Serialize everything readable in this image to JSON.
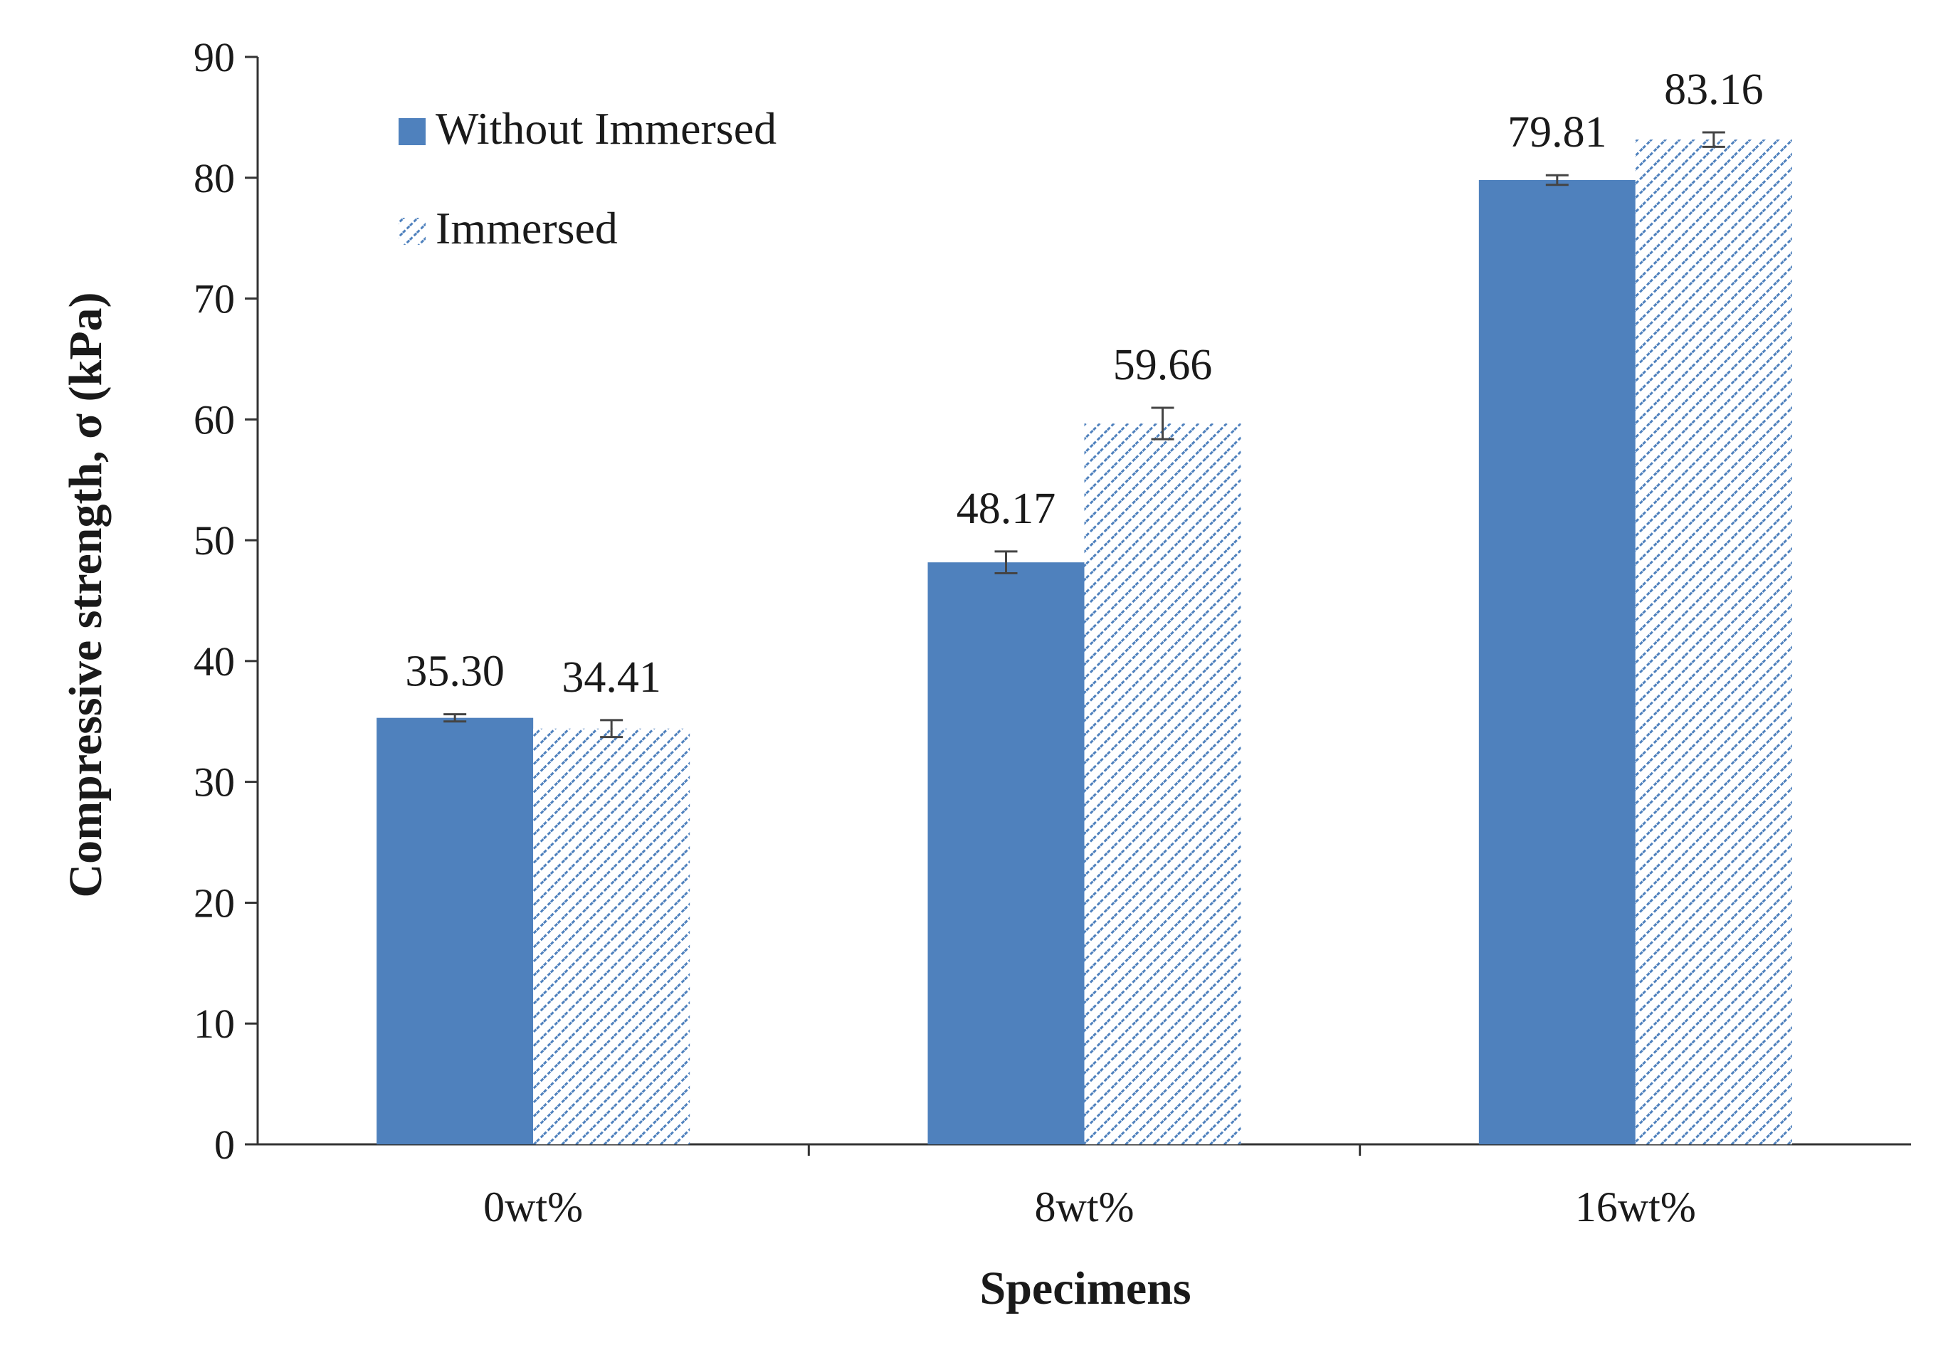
{
  "chart_data": {
    "type": "bar",
    "title": "",
    "xlabel": "Specimens",
    "ylabel": "Compressive strength, σ (kPa)",
    "categories": [
      "0wt%",
      "8wt%",
      "16wt%"
    ],
    "ylim": [
      0,
      90
    ],
    "yticks": [
      0,
      10,
      20,
      30,
      40,
      50,
      60,
      70,
      80,
      90
    ],
    "grid": false,
    "legend_position": "top-left",
    "series": [
      {
        "name": "Without Immersed",
        "values": [
          35.3,
          48.17,
          79.81
        ],
        "labels": [
          "35.30",
          "48.17",
          "79.81"
        ],
        "errors": [
          0.3,
          0.9,
          0.4
        ],
        "color": "#4f81bd",
        "fill": "solid"
      },
      {
        "name": "Immersed",
        "values": [
          34.41,
          59.66,
          83.16
        ],
        "labels": [
          "34.41",
          "59.66",
          "83.16"
        ],
        "errors": [
          0.7,
          1.3,
          0.6
        ],
        "color": "#4f81bd",
        "fill": "diagonal-hatch"
      }
    ]
  }
}
